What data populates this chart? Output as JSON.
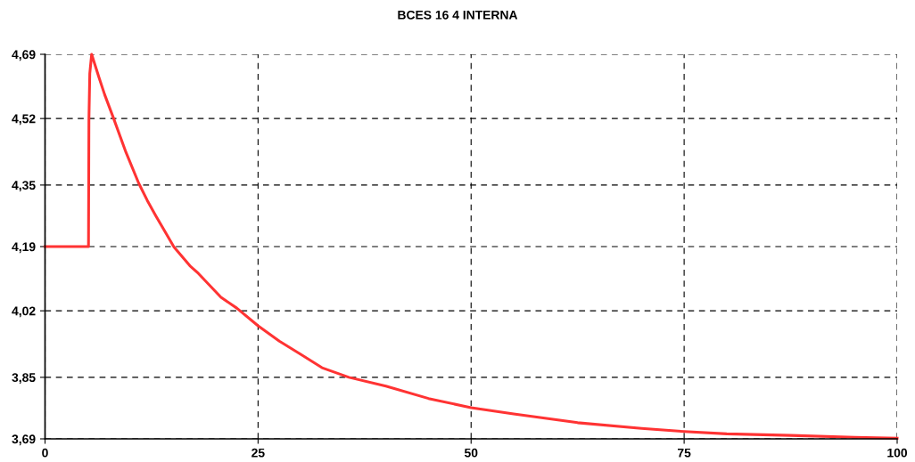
{
  "chart_data": {
    "type": "line",
    "title": "BCES 16 4 INTERNA",
    "series": [
      {
        "color": "#ff3333",
        "x": [
          0,
          5.1,
          5.15,
          5.25,
          5.47,
          6.33,
          7,
          8.05,
          9.5,
          10.99,
          12,
          13,
          15.13,
          17,
          18,
          20.65,
          22.5,
          25,
          27.5,
          30,
          32.5,
          35.66,
          40,
          45,
          50,
          55,
          62.5,
          70,
          75,
          80,
          87.5,
          95,
          100
        ],
        "values": [
          4.19,
          4.19,
          4.52,
          4.64,
          4.69,
          4.63,
          4.585,
          4.523,
          4.435,
          4.355,
          4.31,
          4.27,
          4.189,
          4.14,
          4.12,
          4.058,
          4.03,
          3.984,
          3.944,
          3.91,
          3.875,
          3.85,
          3.827,
          3.795,
          3.771,
          3.755,
          3.732,
          3.717,
          3.709,
          3.703,
          3.699,
          3.694,
          3.692
        ]
      }
    ],
    "xlim": [
      0,
      100
    ],
    "xticks": [
      0,
      25,
      50,
      75,
      100
    ],
    "ylim": [
      3.69,
      4.69
    ],
    "yticks": [
      {
        "value": 3.69,
        "label": "3,69"
      },
      {
        "value": 3.85,
        "label": "3,85"
      },
      {
        "value": 4.023,
        "label": "4,02"
      },
      {
        "value": 4.19,
        "label": "4,19"
      },
      {
        "value": 4.35,
        "label": "4,35"
      },
      {
        "value": 4.523,
        "label": "4,52"
      },
      {
        "value": 4.69,
        "label": "4,69"
      }
    ],
    "grid": true,
    "line_style": "solid",
    "marker": "none"
  }
}
